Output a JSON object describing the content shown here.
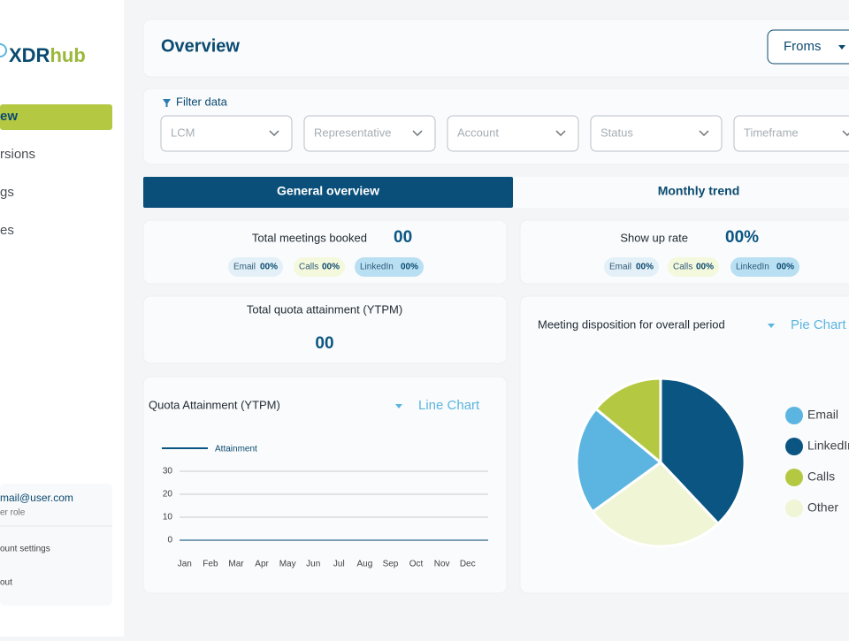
{
  "sidebar": {
    "logo": {
      "dark": "XDR",
      "light": "hub"
    },
    "nav": [
      "ew",
      "rsions",
      "gs",
      "es"
    ],
    "user": {
      "email": "mail@user.com",
      "role": "er role"
    },
    "menu": [
      "ount settings",
      "out"
    ]
  },
  "header": {
    "title": "Overview",
    "button": "Froms"
  },
  "filters": {
    "label": "Filter data",
    "dropdowns": [
      "LCM",
      "Representative",
      "Account",
      "Status",
      "Timeframe"
    ]
  },
  "tabs": [
    "General overview",
    "Monthly trend"
  ],
  "cards": [
    {
      "title": "Total meetings booked",
      "value": "00",
      "chips": [
        {
          "label": "Email",
          "value": "00%"
        },
        {
          "label": "Calls",
          "value": "00%"
        },
        {
          "label": "LinkedIn",
          "value": "00%"
        }
      ]
    },
    {
      "title": "Show up rate",
      "value": "00%",
      "chips": [
        {
          "label": "Email",
          "value": "00%"
        },
        {
          "label": "Calls",
          "value": "00%"
        },
        {
          "label": "LinkedIn",
          "value": "00%"
        }
      ]
    },
    {
      "title": "Total quota attainment (YTPM)",
      "value": "00"
    }
  ],
  "chart_data": [
    {
      "type": "line",
      "title": "Quota Attainment (YTPM)",
      "selector": "Line Chart",
      "categories": [
        "Jan",
        "Feb",
        "Mar",
        "Apr",
        "May",
        "Jun",
        "Jul",
        "Aug",
        "Sep",
        "Oct",
        "Nov",
        "Dec"
      ],
      "series": [
        {
          "name": "Attainment",
          "color": "#0a5582",
          "values": [
            0,
            0,
            0,
            0,
            0,
            0,
            0,
            0,
            0,
            0,
            0,
            0
          ]
        }
      ],
      "ylim": [
        0,
        30
      ],
      "yticks": [
        0,
        10,
        20,
        30
      ],
      "grid": true
    },
    {
      "type": "pie",
      "title": "Meeting disposition for overall period",
      "selector": "Pie Chart",
      "categories": [
        "Email",
        "LinkedIn",
        "Calls",
        "Other"
      ],
      "values": [
        21,
        38,
        14,
        27
      ],
      "colors": [
        "#5bb5e0",
        "#0a5582",
        "#b5c842",
        "#f0f5d6"
      ]
    }
  ]
}
